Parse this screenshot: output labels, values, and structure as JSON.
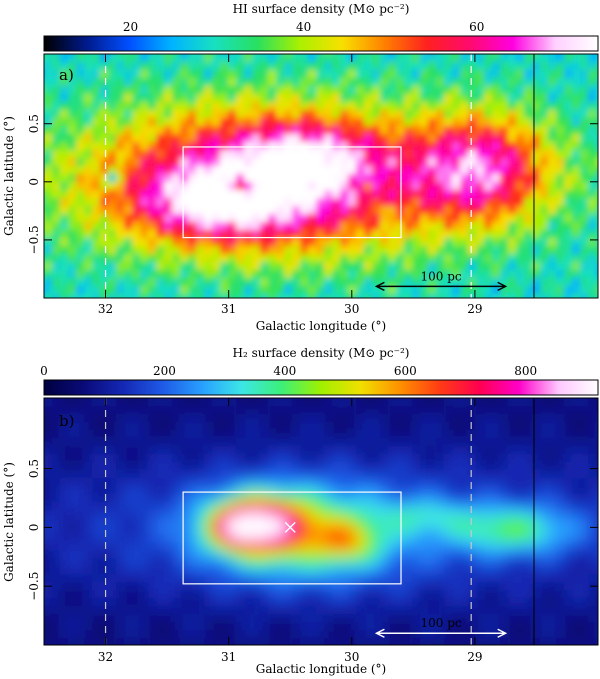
{
  "chart_data": [
    {
      "type": "heatmap",
      "panel_label": "a)",
      "colorbar": {
        "title": "HI surface density (M⊙ pc⁻²)",
        "ticks": [
          20,
          40,
          60
        ],
        "range": [
          10,
          74
        ],
        "colormap": [
          "#000000",
          "#001a8c",
          "#0050ff",
          "#00b4ff",
          "#18e0c0",
          "#28e060",
          "#aaf000",
          "#f8e000",
          "#ff8000",
          "#ff2020",
          "#ff0a6e",
          "#ff00e0",
          "#ffd0ff",
          "#ffffff"
        ]
      },
      "xlabel": "Galactic longitude (°)",
      "ylabel": "Galactic latitude (°)",
      "xticks": [
        "32",
        "31",
        "30",
        "29"
      ],
      "yticks": [
        "0.5",
        "0",
        "−0.5"
      ],
      "xlim": [
        32.5,
        28.0
      ],
      "ylim": [
        -1.0,
        1.1
      ],
      "dashed_lines_l": [
        32.0,
        29.03
      ],
      "solid_line_l": 28.52,
      "box": {
        "l": [
          31.37,
          29.6
        ],
        "b": [
          -0.48,
          0.3
        ]
      },
      "cross_marker": {
        "l": 30.5,
        "b": 0.0
      },
      "scale_bar": {
        "label": "100 pc",
        "l_from": 29.8,
        "l_to": 28.75,
        "b": -0.9,
        "color": "#000000"
      }
    },
    {
      "type": "heatmap",
      "panel_label": "b)",
      "colorbar": {
        "title": "H₂ surface density (M⊙ pc⁻²)",
        "ticks": [
          0,
          200,
          400,
          600,
          800
        ],
        "range": [
          0,
          920
        ],
        "colormap": [
          "#000040",
          "#0a0a78",
          "#1428b4",
          "#1e5ae6",
          "#28a0ff",
          "#3ce6e6",
          "#3cf078",
          "#a0f000",
          "#f0e000",
          "#ff9000",
          "#ff3c14",
          "#ff0050",
          "#ff00c8",
          "#ffc8ff",
          "#ffffff"
        ]
      },
      "xlabel": "Galactic longitude (°)",
      "ylabel": "Galactic latitude (°)",
      "xticks": [
        "32",
        "31",
        "30",
        "29"
      ],
      "yticks": [
        "0.5",
        "0",
        "−0.5"
      ],
      "xlim": [
        32.5,
        28.0
      ],
      "ylim": [
        -1.0,
        1.1
      ],
      "dashed_lines_l": [
        32.0,
        29.03
      ],
      "solid_line_l": 28.52,
      "box": {
        "l": [
          31.37,
          29.6
        ],
        "b": [
          -0.48,
          0.3
        ]
      },
      "cross_marker": {
        "l": 30.5,
        "b": 0.0
      },
      "scale_bar": {
        "label": "100 pc",
        "l_from": 29.8,
        "l_to": 28.75,
        "b": -0.9,
        "color": "#ffffff"
      }
    }
  ]
}
